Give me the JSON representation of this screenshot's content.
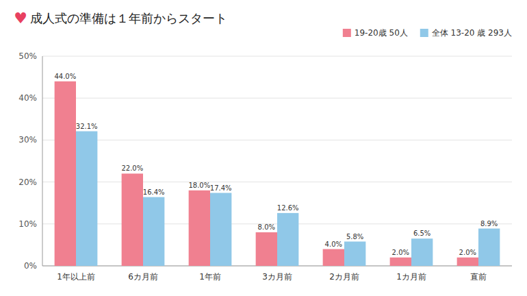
{
  "chart_data": {
    "type": "bar",
    "title": "成人式の準備は１年前からスタート",
    "annotations": [
      {
        "text": "♥",
        "color": "#E84060"
      }
    ],
    "categories": [
      "1年以上前",
      "6カ月前",
      "1年前",
      "3カ月前",
      "2カ月前",
      "1カ月前",
      "直前"
    ],
    "series": [
      {
        "name": "19-20歳 50人",
        "color": "#F08090",
        "values": [
          44.0,
          22.0,
          18.0,
          8.0,
          4.0,
          2.0,
          2.0
        ],
        "value_labels": [
          "44.0%",
          "22.0%",
          "18.0%",
          "8.0%",
          "4.0%",
          "2.0%",
          "2.0%"
        ]
      },
      {
        "name": "全体 13-20 歳 293人",
        "color": "#90C8E8",
        "values": [
          32.1,
          16.4,
          17.4,
          12.6,
          5.8,
          6.5,
          8.9
        ],
        "value_labels": [
          "32.1%",
          "16.4%",
          "17.4%",
          "12.6%",
          "5.8%",
          "6.5%",
          "8.9%"
        ]
      }
    ],
    "ylim": [
      0,
      50
    ],
    "yticks": [
      {
        "value": 0,
        "label": "0%"
      },
      {
        "value": 10,
        "label": "10%"
      },
      {
        "value": 20,
        "label": "20%"
      },
      {
        "value": 30,
        "label": "30%"
      },
      {
        "value": 40,
        "label": "40%"
      },
      {
        "value": 50,
        "label": "50%"
      }
    ],
    "grid": true,
    "legend": "top-right",
    "data_labels": true
  }
}
